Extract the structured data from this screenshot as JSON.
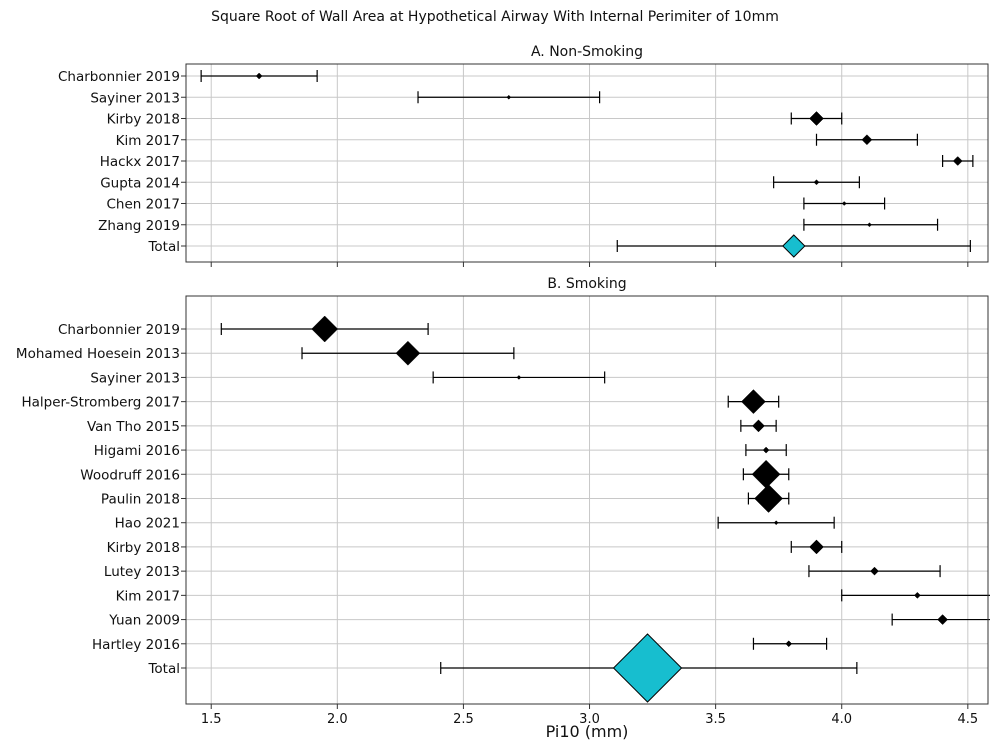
{
  "suptitle": "Square Root of Wall Area at Hypothetical Airway With Internal Perimiter of 10mm",
  "chart_data": [
    {
      "type": "forest",
      "title": "A. Non-Smoking",
      "xlabel": "",
      "xlim": [
        1.4,
        4.58
      ],
      "grid": true,
      "x_ticklabels_visible": false,
      "rows": [
        {
          "label": "Charbonnier 2019",
          "est": 1.69,
          "lo": 1.46,
          "hi": 1.92,
          "size": 3
        },
        {
          "label": "Sayiner 2013",
          "est": 2.68,
          "lo": 2.32,
          "hi": 3.04,
          "size": 2
        },
        {
          "label": "Kirby 2018",
          "est": 3.9,
          "lo": 3.8,
          "hi": 4.0,
          "size": 7
        },
        {
          "label": "Kim 2017",
          "est": 4.1,
          "lo": 3.9,
          "hi": 4.3,
          "size": 5
        },
        {
          "label": "Hackx 2017",
          "est": 4.46,
          "lo": 4.4,
          "hi": 4.52,
          "size": 4.5
        },
        {
          "label": "Gupta 2014",
          "est": 3.9,
          "lo": 3.73,
          "hi": 4.07,
          "size": 2.5
        },
        {
          "label": "Chen 2017",
          "est": 4.01,
          "lo": 3.85,
          "hi": 4.17,
          "size": 2
        },
        {
          "label": "Zhang 2019",
          "est": 4.11,
          "lo": 3.85,
          "hi": 4.38,
          "size": 2
        },
        {
          "label": "Total",
          "est": 3.81,
          "lo": 3.11,
          "hi": 4.51,
          "size": 11,
          "total": true
        }
      ]
    },
    {
      "type": "forest",
      "title": "B. Smoking",
      "xlabel": "Pi10 (mm)",
      "xlim": [
        1.4,
        4.58
      ],
      "grid": true,
      "x_ticks": [
        "1.5",
        "2.0",
        "2.5",
        "3.0",
        "3.5",
        "4.0",
        "4.5"
      ],
      "rows": [
        {
          "label": "Charbonnier 2019",
          "est": 1.95,
          "lo": 1.54,
          "hi": 2.36,
          "size": 13
        },
        {
          "label": "Mohamed Hoesein 2013",
          "est": 2.28,
          "lo": 1.86,
          "hi": 2.7,
          "size": 12
        },
        {
          "label": "Sayiner 2013",
          "est": 2.72,
          "lo": 2.38,
          "hi": 3.06,
          "size": 2
        },
        {
          "label": "Halper-Stromberg 2017",
          "est": 3.65,
          "lo": 3.55,
          "hi": 3.75,
          "size": 12
        },
        {
          "label": "Van Tho 2015",
          "est": 3.67,
          "lo": 3.6,
          "hi": 3.74,
          "size": 6
        },
        {
          "label": "Higami 2016",
          "est": 3.7,
          "lo": 3.62,
          "hi": 3.78,
          "size": 3
        },
        {
          "label": "Woodruff 2016",
          "est": 3.7,
          "lo": 3.61,
          "hi": 3.79,
          "size": 14
        },
        {
          "label": "Paulin 2018",
          "est": 3.71,
          "lo": 3.63,
          "hi": 3.79,
          "size": 14
        },
        {
          "label": "Hao 2021",
          "est": 3.74,
          "lo": 3.51,
          "hi": 3.97,
          "size": 2
        },
        {
          "label": "Kirby 2018",
          "est": 3.9,
          "lo": 3.8,
          "hi": 4.0,
          "size": 7
        },
        {
          "label": "Lutey 2013",
          "est": 4.13,
          "lo": 3.87,
          "hi": 4.39,
          "size": 4
        },
        {
          "label": "Kim 2017",
          "est": 4.3,
          "lo": 4.0,
          "hi": 4.6,
          "size": 3
        },
        {
          "label": "Yuan 2009",
          "est": 4.4,
          "lo": 4.2,
          "hi": 4.6,
          "size": 5
        },
        {
          "label": "Hartley 2016",
          "est": 3.79,
          "lo": 3.65,
          "hi": 3.94,
          "size": 3
        },
        {
          "label": "Total",
          "est": 3.23,
          "lo": 2.41,
          "hi": 4.06,
          "size": 34,
          "total": true
        }
      ]
    }
  ],
  "colors": {
    "marker": "#000000",
    "total_marker": "#17becf",
    "grid": "#c8c8c8",
    "axes": "#333333",
    "errorbar": "#000000"
  }
}
